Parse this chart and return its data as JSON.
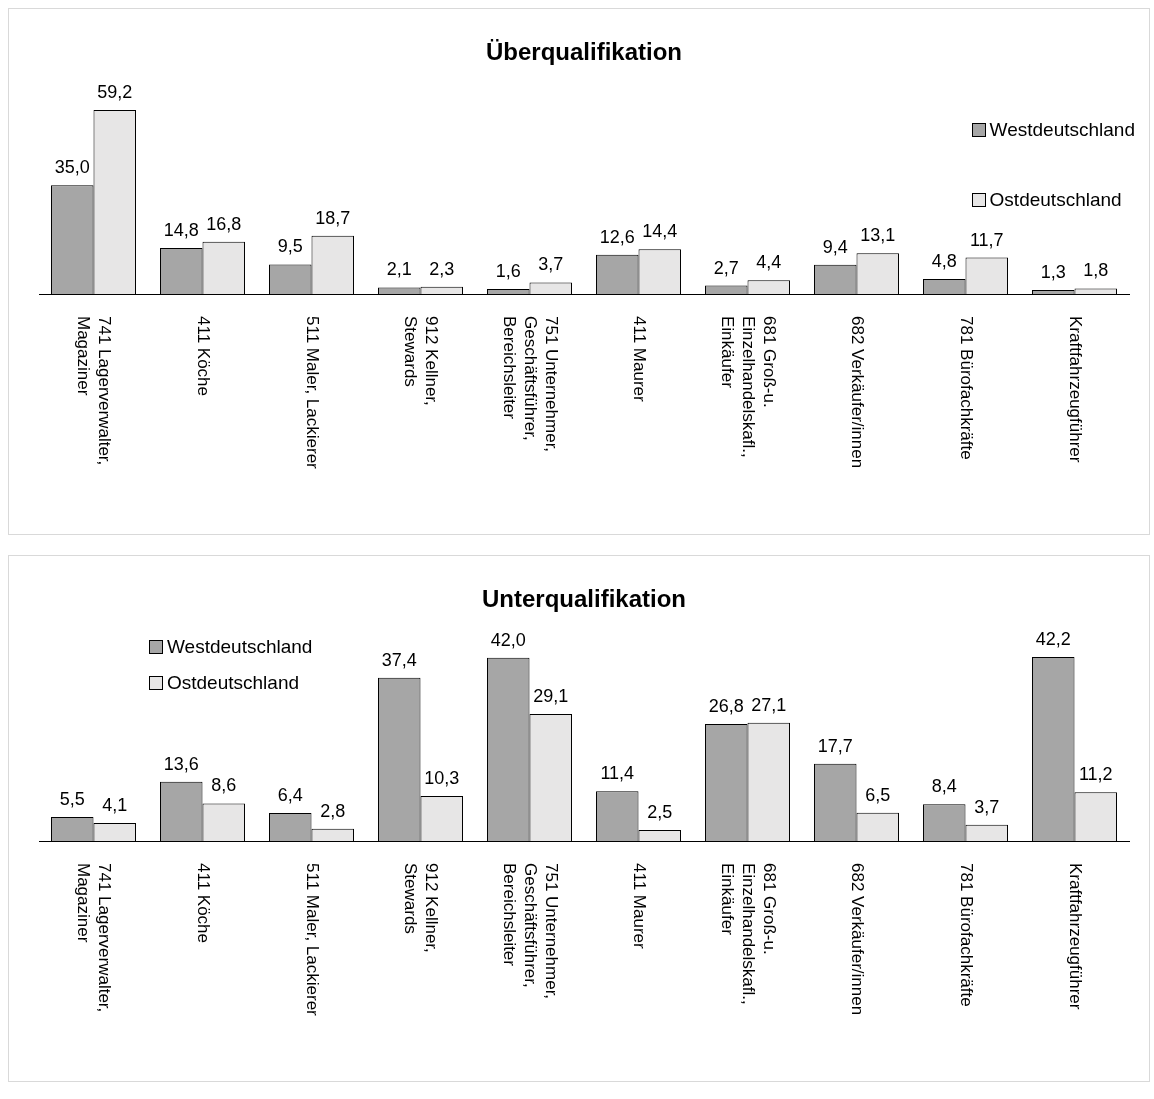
{
  "chart_data": [
    {
      "type": "bar",
      "title": "Überqualifikation",
      "legend": "right",
      "categories": [
        "741 Lagerverwalter, Magaziner",
        "411 Köche",
        "511 Maler, Lackierer",
        "912 Kellner, Stewards",
        "751 Unternehmer, Geschäftsführer, Bereichsleiter",
        "411 Maurer",
        "681 Groß-u. Einzelhandelskafl., Einkäufer",
        "682 Verkäufer/innen",
        "781 Bürofachkräfte",
        "Kraftfahrzeugführer"
      ],
      "series": [
        {
          "name": "Westdeutschland",
          "color": "#a6a6a6",
          "values": [
            35.0,
            14.8,
            9.5,
            2.1,
            1.6,
            12.6,
            2.7,
            9.4,
            4.8,
            1.3
          ],
          "value_labels": [
            "35,0",
            "14,8",
            "9,5",
            "2,1",
            "1,6",
            "12,6",
            "2,7",
            "9,4",
            "4,8",
            "1,3"
          ]
        },
        {
          "name": "Ostdeutschland",
          "color": "#e7e6e6",
          "values": [
            59.2,
            16.8,
            18.7,
            2.3,
            3.7,
            14.4,
            4.4,
            13.1,
            11.7,
            1.8
          ],
          "value_labels": [
            "59,2",
            "16,8",
            "18,7",
            "2,3",
            "3,7",
            "14,4",
            "4,4",
            "13,1",
            "11,7",
            "1,8"
          ]
        }
      ]
    },
    {
      "type": "bar",
      "title": "Unterqualifikation",
      "legend": "top left",
      "categories": [
        "741 Lagerverwalter, Magaziner",
        "411 Köche",
        "511 Maler, Lackierer",
        "912 Kellner, Stewards",
        "751 Unternehmer, Geschäftsführer, Bereichsleiter",
        "411 Maurer",
        "681 Groß-u. Einzelhandelskafl., Einkäufer",
        "682 Verkäufer/innen",
        "781 Bürofachkräfte",
        "Kraftfahrzeugführer"
      ],
      "series": [
        {
          "name": "Westdeutschland",
          "color": "#a6a6a6",
          "values": [
            5.5,
            13.6,
            6.4,
            37.4,
            42.0,
            11.4,
            26.8,
            17.7,
            8.4,
            42.2
          ],
          "value_labels": [
            "5,5",
            "13,6",
            "6,4",
            "37,4",
            "42,0",
            "11,4",
            "26,8",
            "17,7",
            "8,4",
            "42,2"
          ]
        },
        {
          "name": "Ostdeutschland",
          "color": "#e7e6e6",
          "values": [
            4.1,
            8.6,
            2.8,
            10.3,
            29.1,
            2.5,
            27.1,
            6.5,
            3.7,
            11.2
          ],
          "value_labels": [
            "4,1",
            "8,6",
            "2,8",
            "10,3",
            "29,1",
            "2,5",
            "27,1",
            "6,5",
            "3,7",
            "11,2"
          ]
        }
      ]
    }
  ]
}
